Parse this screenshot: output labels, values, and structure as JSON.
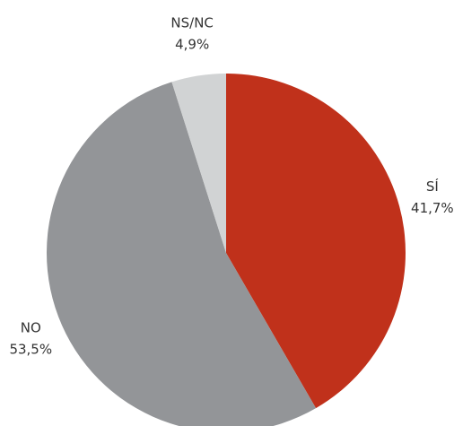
{
  "chart_data": {
    "type": "pie",
    "categories": [
      "SÍ",
      "NO",
      "NS/NC"
    ],
    "values": [
      41.7,
      53.5,
      4.9
    ],
    "value_labels": [
      "41,7%",
      "53,5%",
      "4,9%"
    ],
    "colors": [
      "#c0311b",
      "#939598",
      "#d1d3d4"
    ]
  }
}
